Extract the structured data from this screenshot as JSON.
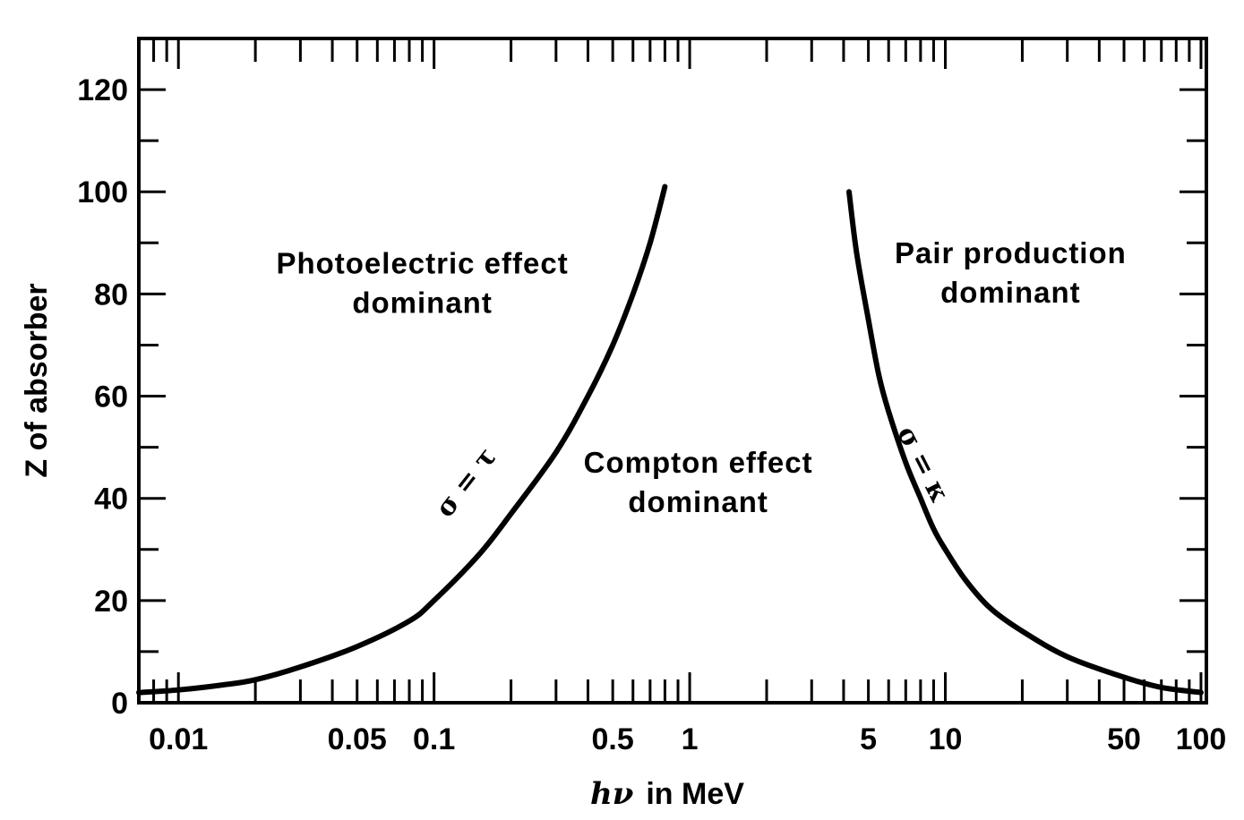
{
  "chart_data": {
    "type": "line",
    "xlabel_symbol": "hν",
    "xlabel_text": "in MeV",
    "ylabel": "Z of absorber",
    "xscale": "log",
    "xlim": [
      0.007,
      105
    ],
    "ylim": [
      0,
      130
    ],
    "x_tick_labels": [
      {
        "value": 0.01,
        "label": "0.01"
      },
      {
        "value": 0.05,
        "label": "0.05"
      },
      {
        "value": 0.1,
        "label": "0.1"
      },
      {
        "value": 0.5,
        "label": "0.5"
      },
      {
        "value": 1,
        "label": "1"
      },
      {
        "value": 5,
        "label": "5"
      },
      {
        "value": 10,
        "label": "10"
      },
      {
        "value": 50,
        "label": "50"
      },
      {
        "value": 100,
        "label": "100"
      }
    ],
    "y_tick_labels": [
      {
        "value": 0,
        "label": "0"
      },
      {
        "value": 20,
        "label": "20"
      },
      {
        "value": 40,
        "label": "40"
      },
      {
        "value": 60,
        "label": "60"
      },
      {
        "value": 80,
        "label": "80"
      },
      {
        "value": 100,
        "label": "100"
      },
      {
        "value": 120,
        "label": "120"
      }
    ],
    "series": [
      {
        "label": "σ = τ",
        "x": [
          0.007,
          0.01,
          0.015,
          0.02,
          0.03,
          0.05,
          0.08,
          0.1,
          0.15,
          0.2,
          0.3,
          0.4,
          0.5,
          0.6,
          0.7,
          0.8
        ],
        "y": [
          2,
          2.5,
          3.5,
          4.5,
          7,
          11,
          16,
          20,
          29,
          37,
          49,
          60,
          70,
          80,
          90,
          101
        ]
      },
      {
        "label": "σ = κ",
        "x": [
          4.2,
          4.5,
          5,
          5.5,
          6,
          7,
          8,
          9,
          10,
          12,
          15,
          20,
          30,
          50,
          70,
          100
        ],
        "y": [
          100,
          88,
          75,
          64,
          57,
          47,
          40,
          34,
          30,
          24,
          18.5,
          14,
          9,
          5,
          3,
          2
        ]
      }
    ],
    "annotations": [
      {
        "lines": [
          "Photoelectric effect",
          "dominant"
        ],
        "x": 0.09,
        "y": 84
      },
      {
        "lines": [
          "Compton effect",
          "dominant"
        ],
        "x": 1.08,
        "y": 45
      },
      {
        "lines": [
          "Pair production",
          "dominant"
        ],
        "x": 18,
        "y": 86
      }
    ]
  }
}
